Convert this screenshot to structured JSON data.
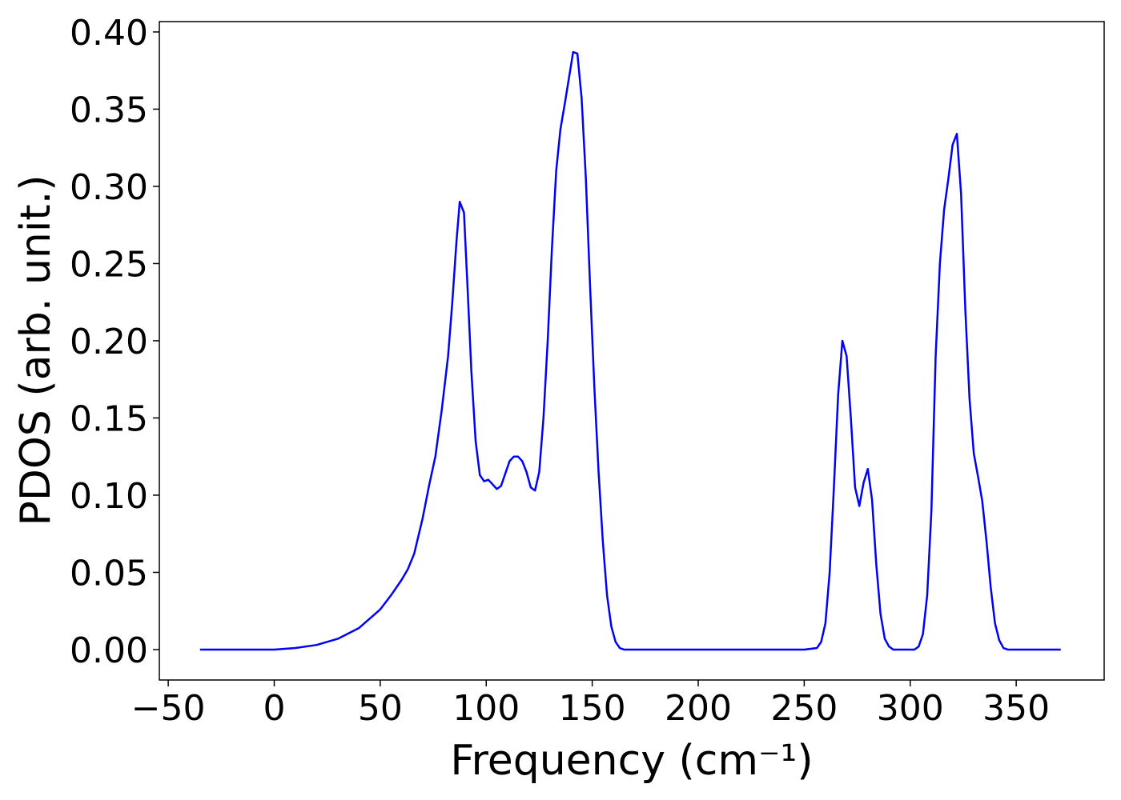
{
  "chart_data": {
    "type": "line",
    "x_label": "Frequency (cm⁻¹)",
    "y_label": "PDOS (arb. unit.)",
    "x": [
      -35,
      -20,
      0,
      10,
      20,
      30,
      40,
      50,
      55,
      60,
      63,
      66,
      70,
      73,
      76,
      79,
      82,
      84,
      86,
      87.5,
      89.5,
      91,
      93,
      95,
      97,
      99,
      101,
      103,
      105,
      107,
      109,
      111,
      113,
      115,
      117,
      119,
      121,
      123,
      125,
      127,
      129,
      131,
      133,
      135,
      137,
      139,
      141,
      143,
      145,
      147,
      149,
      151,
      153,
      155,
      157,
      159,
      161,
      163,
      165,
      200,
      250,
      256,
      258,
      260,
      262,
      264,
      266,
      268,
      270,
      272,
      274,
      276,
      278,
      280,
      282,
      284,
      286,
      288,
      290,
      292,
      302,
      304,
      306,
      308,
      310,
      312,
      314,
      316,
      318,
      320,
      322,
      324,
      326,
      328,
      330,
      332,
      334,
      336,
      338,
      340,
      342,
      344,
      346,
      371
    ],
    "series": [
      {
        "color": "#0000ff",
        "values": [
          0,
          0,
          0,
          0.001,
          0.003,
          0.007,
          0.014,
          0.026,
          0.035,
          0.045,
          0.052,
          0.062,
          0.085,
          0.106,
          0.125,
          0.155,
          0.19,
          0.225,
          0.265,
          0.29,
          0.283,
          0.24,
          0.18,
          0.135,
          0.113,
          0.109,
          0.11,
          0.107,
          0.104,
          0.106,
          0.114,
          0.122,
          0.125,
          0.125,
          0.122,
          0.115,
          0.105,
          0.103,
          0.115,
          0.15,
          0.2,
          0.26,
          0.31,
          0.337,
          0.353,
          0.37,
          0.387,
          0.386,
          0.357,
          0.305,
          0.235,
          0.17,
          0.115,
          0.07,
          0.035,
          0.015,
          0.005,
          0.001,
          0,
          0,
          0,
          0.001,
          0.005,
          0.017,
          0.05,
          0.105,
          0.165,
          0.2,
          0.19,
          0.15,
          0.105,
          0.093,
          0.108,
          0.117,
          0.097,
          0.055,
          0.023,
          0.007,
          0.002,
          0,
          0,
          0.002,
          0.01,
          0.035,
          0.09,
          0.19,
          0.25,
          0.285,
          0.305,
          0.327,
          0.334,
          0.295,
          0.22,
          0.162,
          0.127,
          0.112,
          0.096,
          0.07,
          0.04,
          0.017,
          0.006,
          0.001,
          0,
          0
        ]
      }
    ],
    "xlim": [
      -54.2,
      391.5
    ],
    "ylim": [
      -0.0197,
      0.4067
    ],
    "xticks": [
      {
        "value": -50,
        "label": "−50"
      },
      0,
      50,
      100,
      150,
      200,
      250,
      300,
      350
    ],
    "yticks": [
      {
        "value": 0,
        "label": "0.00"
      },
      {
        "value": 0.05,
        "label": "0.05"
      },
      {
        "value": 0.1,
        "label": "0.10"
      },
      {
        "value": 0.15,
        "label": "0.15"
      },
      {
        "value": 0.2,
        "label": "0.20"
      },
      {
        "value": 0.25,
        "label": "0.25"
      },
      {
        "value": 0.3,
        "label": "0.30"
      },
      {
        "value": 0.35,
        "label": "0.35"
      },
      {
        "value": 0.4,
        "label": "0.40"
      }
    ],
    "grid": false
  }
}
